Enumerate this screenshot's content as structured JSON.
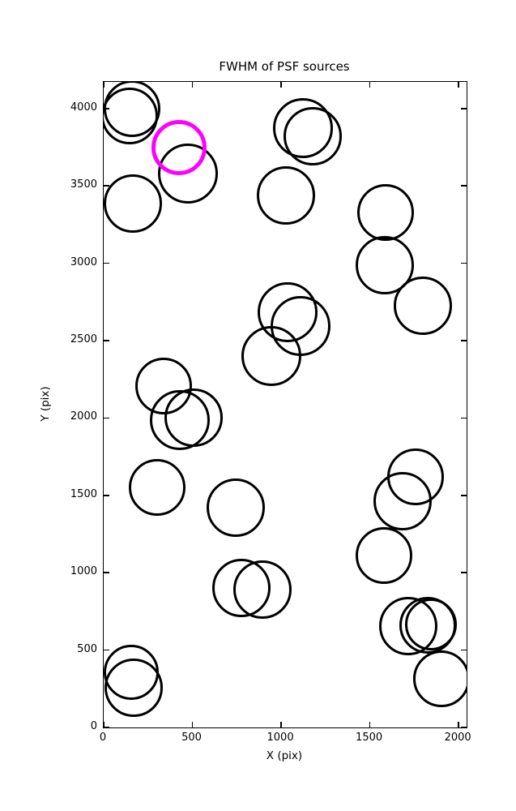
{
  "figure": {
    "background_color": "#ffffff",
    "axes_color": "#000000"
  },
  "chart_data": {
    "type": "scatter",
    "title": "FWHM of PSF sources",
    "xlabel": "X (pix)",
    "ylabel": "Y (pix)",
    "xlim": [
      0,
      2045
    ],
    "ylim": [
      0,
      4172
    ],
    "xticks": [
      0,
      500,
      1000,
      1500,
      2000
    ],
    "yticks": [
      0,
      500,
      1000,
      1500,
      2000,
      2500,
      3000,
      3500,
      4000
    ],
    "grid": false,
    "legend_position": "none",
    "marker": "open-circle",
    "tick_direction": "in",
    "series": [
      {
        "name": "psf-sources",
        "color": "#000000",
        "line_width": 3,
        "points": [
          {
            "x": 162,
            "y": 3997,
            "r": 35
          },
          {
            "x": 144,
            "y": 3950,
            "r": 35
          },
          {
            "x": 477,
            "y": 3580,
            "r": 37
          },
          {
            "x": 162,
            "y": 3384,
            "r": 36
          },
          {
            "x": 1125,
            "y": 3871,
            "r": 37
          },
          {
            "x": 1176,
            "y": 3819,
            "r": 36
          },
          {
            "x": 1025,
            "y": 3436,
            "r": 36
          },
          {
            "x": 1587,
            "y": 3326,
            "r": 35
          },
          {
            "x": 1582,
            "y": 2990,
            "r": 36
          },
          {
            "x": 1797,
            "y": 2723,
            "r": 36
          },
          {
            "x": 1034,
            "y": 2681,
            "r": 37
          },
          {
            "x": 1107,
            "y": 2592,
            "r": 37
          },
          {
            "x": 947,
            "y": 2403,
            "r": 37
          },
          {
            "x": 336,
            "y": 2204,
            "r": 35
          },
          {
            "x": 427,
            "y": 1989,
            "r": 37
          },
          {
            "x": 505,
            "y": 2004,
            "r": 36
          },
          {
            "x": 299,
            "y": 1554,
            "r": 35
          },
          {
            "x": 742,
            "y": 1422,
            "r": 36
          },
          {
            "x": 1756,
            "y": 1617,
            "r": 35
          },
          {
            "x": 1683,
            "y": 1464,
            "r": 36
          },
          {
            "x": 1578,
            "y": 1113,
            "r": 35
          },
          {
            "x": 774,
            "y": 903,
            "r": 36
          },
          {
            "x": 893,
            "y": 893,
            "r": 36
          },
          {
            "x": 1715,
            "y": 657,
            "r": 36
          },
          {
            "x": 1824,
            "y": 662,
            "r": 35
          },
          {
            "x": 1842,
            "y": 667,
            "r": 32
          },
          {
            "x": 1902,
            "y": 316,
            "r": 35
          },
          {
            "x": 153,
            "y": 358,
            "r": 34
          },
          {
            "x": 171,
            "y": 258,
            "r": 36
          }
        ]
      },
      {
        "name": "highlighted-source",
        "color": "#FF00FF",
        "line_width": 5,
        "points": [
          {
            "x": 425,
            "y": 3745,
            "r": 34
          }
        ]
      }
    ]
  }
}
